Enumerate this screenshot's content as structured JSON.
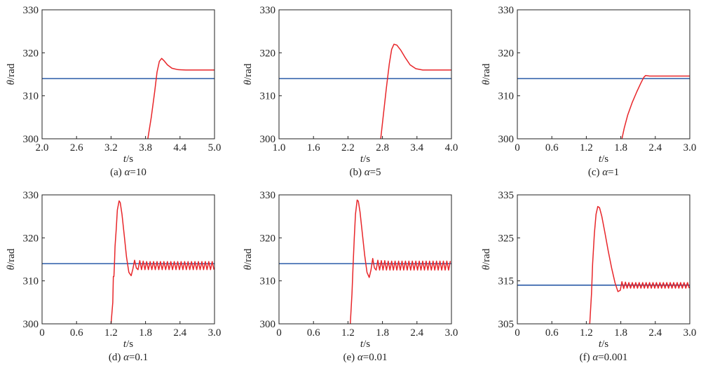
{
  "colors": {
    "response": "#e8262a",
    "reference": "#2a5ba8",
    "axis": "#222222"
  },
  "chart_data": [
    {
      "type": "line",
      "caption_prefix": "(a) ",
      "caption_alpha": "α",
      "caption_value": "=10",
      "xlabel_var": "t",
      "xlabel_unit": "/s",
      "ylabel_var": "θ",
      "ylabel_unit": "/rad",
      "xlim": [
        2.0,
        5.0
      ],
      "ylim": [
        300,
        330
      ],
      "xticks": [
        "2.0",
        "2.6",
        "3.2",
        "3.8",
        "4.4",
        "5.0"
      ],
      "yticks": [
        "300",
        "310",
        "320",
        "330"
      ],
      "reference_y": 314,
      "series": [
        {
          "role": "response",
          "x": [
            3.84,
            3.9,
            3.96,
            4.0,
            4.04,
            4.08,
            4.12,
            4.18,
            4.26,
            4.36,
            4.5,
            4.7,
            5.0
          ],
          "y": [
            300,
            305,
            311,
            315.5,
            318,
            318.7,
            318.2,
            317.2,
            316.4,
            316.1,
            316.0,
            316.0,
            316.0
          ]
        }
      ]
    },
    {
      "type": "line",
      "caption_prefix": "(b) ",
      "caption_alpha": "α",
      "caption_value": "=5",
      "xlabel_var": "t",
      "xlabel_unit": "/s",
      "ylabel_var": "θ",
      "ylabel_unit": "/rad",
      "xlim": [
        1.0,
        4.0
      ],
      "ylim": [
        300,
        330
      ],
      "xticks": [
        "1.0",
        "1.6",
        "2.2",
        "2.8",
        "3.4",
        "4.0"
      ],
      "yticks": [
        "300",
        "310",
        "320",
        "330"
      ],
      "reference_y": 314,
      "series": [
        {
          "role": "response",
          "x": [
            2.77,
            2.82,
            2.87,
            2.92,
            2.96,
            3.0,
            3.05,
            3.12,
            3.2,
            3.28,
            3.38,
            3.5,
            3.7,
            4.0
          ],
          "y": [
            300,
            306,
            312,
            317.5,
            320.8,
            322.0,
            321.8,
            320.6,
            318.8,
            317.2,
            316.3,
            316.0,
            316.0,
            316.0
          ]
        }
      ]
    },
    {
      "type": "line",
      "caption_prefix": "(c) ",
      "caption_alpha": "α",
      "caption_value": "=1",
      "xlabel_var": "t",
      "xlabel_unit": "/s",
      "ylabel_var": "θ",
      "ylabel_unit": "/rad",
      "xlim": [
        0,
        3.0
      ],
      "ylim": [
        300,
        330
      ],
      "xticks": [
        "0",
        "0.6",
        "1.2",
        "1.8",
        "2.4",
        "3.0"
      ],
      "yticks": [
        "300",
        "310",
        "320",
        "330"
      ],
      "reference_y": 314,
      "series": [
        {
          "role": "response",
          "x": [
            1.82,
            1.86,
            1.92,
            2.0,
            2.08,
            2.15,
            2.2,
            2.23,
            2.3,
            2.6,
            3.0
          ],
          "y": [
            300,
            302.5,
            305.5,
            308.5,
            311,
            313,
            314.3,
            314.7,
            314.6,
            314.6,
            314.6
          ]
        }
      ]
    },
    {
      "type": "line",
      "caption_prefix": "(d) ",
      "caption_alpha": "α",
      "caption_value": "=0.1",
      "xlabel_var": "t",
      "xlabel_unit": "/s",
      "ylabel_var": "θ",
      "ylabel_unit": "/rad",
      "xlim": [
        0,
        3.0
      ],
      "ylim": [
        300,
        330
      ],
      "xticks": [
        "0",
        "0.6",
        "1.2",
        "1.8",
        "2.4",
        "3.0"
      ],
      "yticks": [
        "300",
        "310",
        "320",
        "330"
      ],
      "reference_y": 314,
      "series": [
        {
          "role": "response",
          "x": [
            1.2,
            1.23,
            1.24,
            1.25,
            1.26,
            1.27,
            1.29,
            1.31,
            1.34,
            1.36,
            1.39,
            1.43,
            1.47,
            1.51,
            1.55,
            1.58,
            1.61,
            1.64,
            1.67,
            1.7,
            1.73,
            1.76,
            1.79,
            1.82,
            1.85,
            1.88,
            1.91,
            1.94,
            1.97,
            2.0,
            2.03,
            2.06,
            2.09,
            2.12,
            2.15,
            2.18,
            2.21,
            2.24,
            2.27,
            2.3,
            2.33,
            2.36,
            2.39,
            2.42,
            2.45,
            2.48,
            2.51,
            2.54,
            2.57,
            2.6,
            2.63,
            2.66,
            2.69,
            2.72,
            2.75,
            2.78,
            2.81,
            2.84,
            2.87,
            2.9,
            2.93,
            2.96,
            2.99
          ],
          "y": [
            300,
            305,
            311,
            311,
            314,
            318,
            322,
            326.5,
            328.6,
            328.2,
            325.5,
            320.5,
            315.5,
            312.0,
            311.2,
            312.8,
            314.8,
            313.0,
            312.6,
            314.7,
            312.6,
            314.6,
            312.6,
            314.5,
            312.6,
            314.5,
            312.6,
            314.5,
            312.6,
            314.5,
            312.6,
            314.5,
            312.6,
            314.5,
            312.6,
            314.5,
            312.6,
            314.5,
            312.6,
            314.5,
            312.6,
            314.5,
            312.6,
            314.5,
            312.6,
            314.5,
            312.6,
            314.5,
            312.6,
            314.5,
            312.6,
            314.5,
            312.6,
            314.5,
            312.6,
            314.5,
            312.6,
            314.5,
            312.6,
            314.5,
            312.6,
            314.5,
            312.6
          ]
        }
      ]
    },
    {
      "type": "line",
      "caption_prefix": "(e) ",
      "caption_alpha": "α",
      "caption_value": "=0.01",
      "xlabel_var": "t",
      "xlabel_unit": "/s",
      "ylabel_var": "θ",
      "ylabel_unit": "/rad",
      "xlim": [
        0,
        3.0
      ],
      "ylim": [
        300,
        330
      ],
      "xticks": [
        "0",
        "0.6",
        "1.2",
        "1.8",
        "2.4",
        "3.0"
      ],
      "yticks": [
        "300",
        "310",
        "320",
        "330"
      ],
      "reference_y": 314,
      "series": [
        {
          "role": "response",
          "x": [
            1.24,
            1.27,
            1.29,
            1.31,
            1.33,
            1.36,
            1.38,
            1.41,
            1.45,
            1.49,
            1.53,
            1.57,
            1.6,
            1.63,
            1.66,
            1.69,
            1.72,
            1.75,
            1.78,
            1.81,
            1.84,
            1.87,
            1.9,
            1.93,
            1.96,
            1.99,
            2.02,
            2.05,
            2.08,
            2.11,
            2.14,
            2.17,
            2.2,
            2.23,
            2.26,
            2.29,
            2.32,
            2.35,
            2.38,
            2.41,
            2.44,
            2.47,
            2.5,
            2.53,
            2.56,
            2.59,
            2.62,
            2.65,
            2.68,
            2.71,
            2.74,
            2.77,
            2.8,
            2.83,
            2.86,
            2.89,
            2.92,
            2.95,
            2.98
          ],
          "y": [
            300,
            307,
            314,
            320,
            325.5,
            328.8,
            328.5,
            326,
            321,
            316,
            312,
            310.8,
            312.5,
            315.2,
            313.0,
            312.5,
            314.8,
            312.5,
            314.7,
            312.5,
            314.7,
            312.5,
            314.6,
            312.5,
            314.6,
            312.5,
            314.6,
            312.5,
            314.6,
            312.5,
            314.6,
            312.5,
            314.6,
            312.5,
            314.6,
            312.5,
            314.6,
            312.5,
            314.6,
            312.5,
            314.6,
            312.5,
            314.6,
            312.5,
            314.6,
            312.5,
            314.6,
            312.5,
            314.6,
            312.5,
            314.6,
            312.5,
            314.6,
            312.5,
            314.6,
            312.5,
            314.6,
            312.5,
            314.6
          ]
        }
      ]
    },
    {
      "type": "line",
      "caption_prefix": "(f) ",
      "caption_alpha": "α",
      "caption_value": "=0.001",
      "xlabel_var": "t",
      "xlabel_unit": "/s",
      "ylabel_var": "θ",
      "ylabel_unit": "/rad",
      "xlim": [
        0,
        3.0
      ],
      "ylim": [
        305,
        335
      ],
      "xticks": [
        "0",
        "0.6",
        "1.2",
        "1.8",
        "2.4",
        "3.0"
      ],
      "yticks": [
        "305",
        "315",
        "325",
        "335"
      ],
      "reference_y": 314,
      "series": [
        {
          "role": "response",
          "x": [
            1.26,
            1.29,
            1.31,
            1.34,
            1.37,
            1.4,
            1.43,
            1.47,
            1.52,
            1.58,
            1.64,
            1.7,
            1.75,
            1.79,
            1.82,
            1.85,
            1.88,
            1.91,
            1.94,
            1.97,
            2.0,
            2.03,
            2.06,
            2.09,
            2.12,
            2.15,
            2.18,
            2.21,
            2.24,
            2.27,
            2.3,
            2.33,
            2.36,
            2.39,
            2.42,
            2.45,
            2.48,
            2.51,
            2.54,
            2.57,
            2.6,
            2.63,
            2.66,
            2.69,
            2.72,
            2.75,
            2.78,
            2.81,
            2.84,
            2.87,
            2.9,
            2.93,
            2.96,
            2.99
          ],
          "y": [
            305,
            312,
            319,
            326,
            330.5,
            332.3,
            332,
            330,
            326.5,
            322,
            318,
            314.5,
            312.5,
            312.8,
            314.8,
            313.2,
            314.7,
            313.3,
            314.6,
            313.3,
            314.6,
            313.3,
            314.6,
            313.3,
            314.6,
            313.3,
            314.6,
            313.3,
            314.6,
            313.3,
            314.6,
            313.3,
            314.6,
            313.3,
            314.6,
            313.3,
            314.6,
            313.3,
            314.6,
            313.3,
            314.6,
            313.3,
            314.6,
            313.3,
            314.6,
            313.3,
            314.6,
            313.3,
            314.6,
            313.3,
            314.6,
            313.3,
            314.6,
            313.3
          ]
        }
      ]
    }
  ]
}
